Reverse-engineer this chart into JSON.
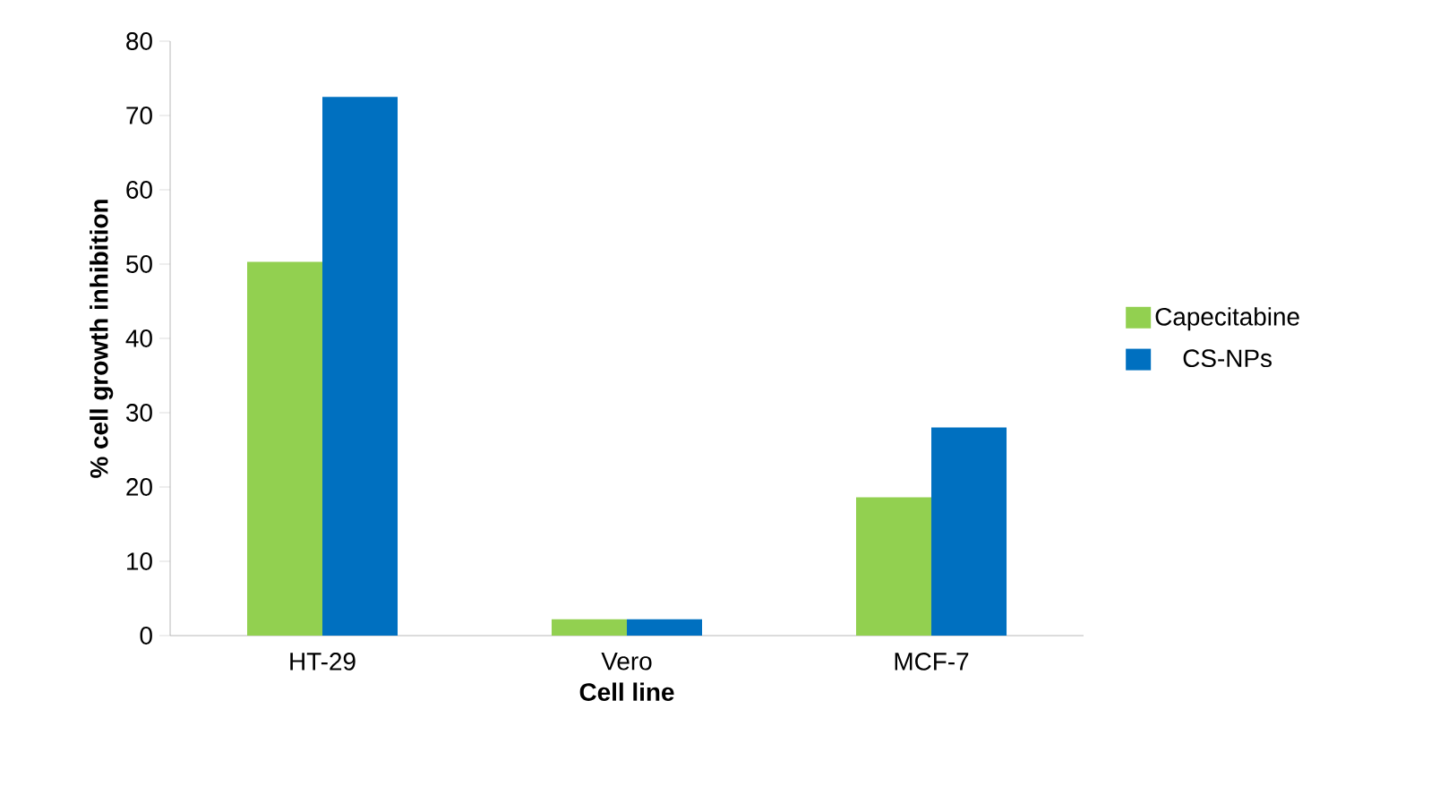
{
  "chart_data": {
    "type": "bar",
    "xlabel": "Cell line",
    "ylabel": "% cell growth inhibition",
    "categories": [
      "HT-29",
      "Vero",
      "MCF-7"
    ],
    "series": [
      {
        "name": "Capecitabine",
        "color": "#92d050",
        "values": [
          50.3,
          2.2,
          18.6
        ]
      },
      {
        "name": "CS-NPs",
        "color": "#0070c0",
        "values": [
          72.5,
          2.2,
          28.0
        ]
      }
    ],
    "ylim": [
      0,
      80
    ],
    "yticks": [
      0,
      10,
      20,
      30,
      40,
      50,
      60,
      70,
      80
    ],
    "legend": "right"
  }
}
